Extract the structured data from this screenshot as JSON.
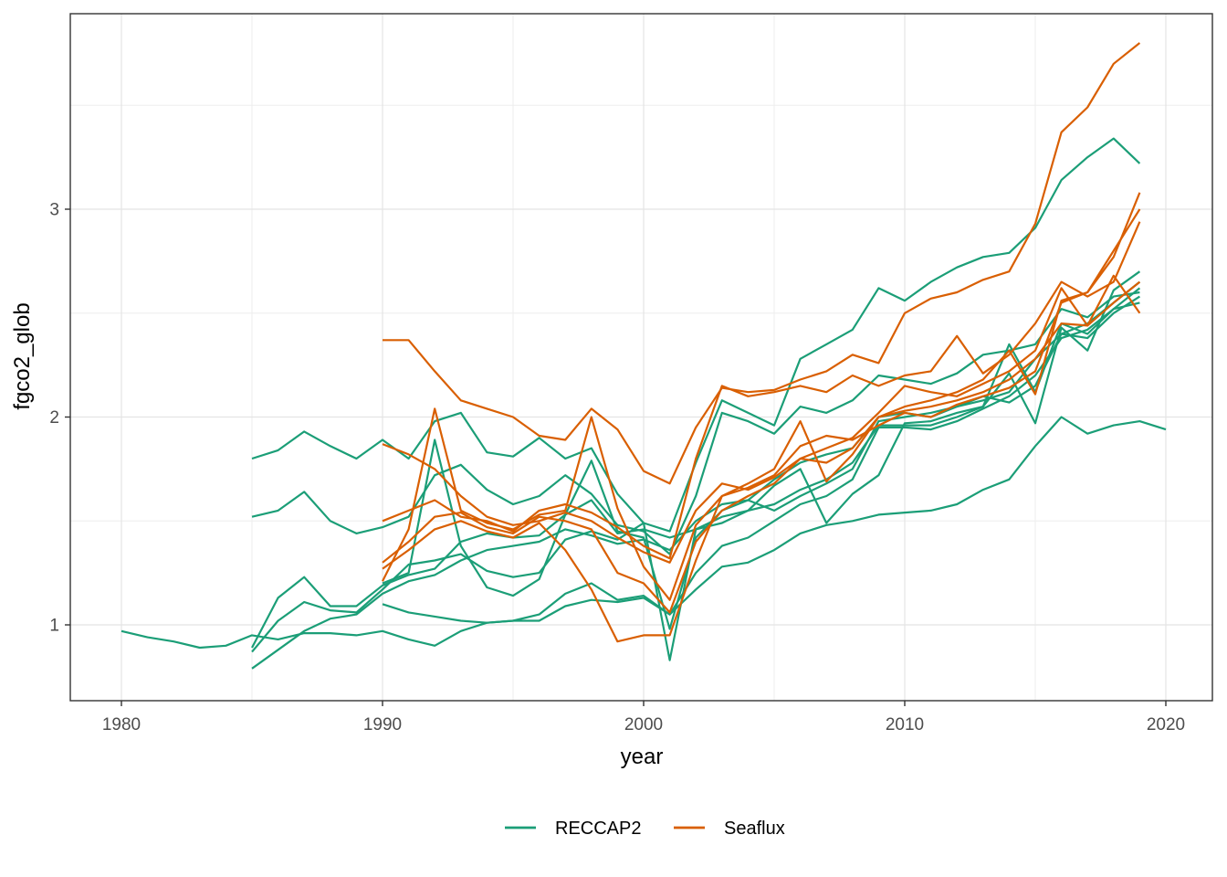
{
  "chart_data": {
    "type": "line",
    "title": "",
    "xlabel": "year",
    "ylabel": "fgco2_glob",
    "x_ticks": [
      {
        "label": "1980",
        "value": 1980
      },
      {
        "label": "1990",
        "value": 1990
      },
      {
        "label": "2000",
        "value": 2000
      },
      {
        "label": "2010",
        "value": 2010
      },
      {
        "label": "2020",
        "value": 2020
      }
    ],
    "x_minor_ticks": [
      1985,
      1995,
      2005,
      2015
    ],
    "y_ticks": [
      {
        "label": "1",
        "value": 1
      },
      {
        "label": "2",
        "value": 2
      },
      {
        "label": "3",
        "value": 3
      }
    ],
    "y_minor_ticks": [
      1.5,
      2.5,
      3.5
    ],
    "xlim": [
      1978.05,
      2021.85
    ],
    "ylim": [
      0.635,
      3.94
    ],
    "grid": true,
    "legend_position": "bottom",
    "panel_background": "#ffffff",
    "grid_major_color": "#e4e4e4",
    "grid_minor_color": "#ededed",
    "panel_border_color": "#333333",
    "tick_label_color": "#4d4d4d",
    "groups": [
      {
        "name": "RECCAP2",
        "color": "#1B9E77"
      },
      {
        "name": "Seaflux",
        "color": "#D95F02"
      }
    ],
    "series": [
      {
        "group": "RECCAP2",
        "start_year": 1980,
        "values": [
          0.97,
          0.94,
          0.92,
          0.89,
          0.9,
          0.95,
          0.93,
          0.96,
          0.96,
          0.95,
          0.97,
          0.93,
          0.9,
          0.97,
          1.01,
          1.02,
          1.02,
          1.09,
          1.12,
          1.11,
          1.13,
          1.05,
          1.17,
          1.28,
          1.3,
          1.36,
          1.44,
          1.48,
          1.5,
          1.53,
          1.54,
          1.55,
          1.58,
          1.65,
          1.7,
          1.86,
          2.0,
          1.92,
          1.96,
          1.98,
          1.94
        ]
      },
      {
        "group": "RECCAP2",
        "start_year": 1985,
        "values": [
          1.8,
          1.84,
          1.93,
          1.86,
          1.8,
          1.89,
          1.8,
          1.98,
          2.02,
          1.83,
          1.81,
          1.9,
          1.8,
          1.85,
          1.63,
          1.49,
          1.45,
          1.78,
          2.08,
          2.02,
          1.96,
          2.28,
          2.35,
          2.42,
          2.62,
          2.56,
          2.65,
          2.72,
          2.77,
          2.79,
          2.91,
          3.14,
          3.25,
          3.34,
          3.22
        ]
      },
      {
        "group": "RECCAP2",
        "start_year": 1985,
        "values": [
          1.52,
          1.55,
          1.64,
          1.5,
          1.44,
          1.47,
          1.52,
          1.72,
          1.77,
          1.65,
          1.58,
          1.62,
          1.72,
          1.63,
          1.48,
          1.45,
          1.34,
          1.62,
          2.02,
          1.98,
          1.92,
          2.05,
          2.02,
          2.08,
          2.2,
          2.18,
          2.16,
          2.21,
          2.3,
          2.32,
          2.35,
          2.52,
          2.48,
          2.58,
          2.6
        ]
      },
      {
        "group": "RECCAP2",
        "start_year": 1985,
        "values": [
          0.89,
          1.13,
          1.23,
          1.09,
          1.09,
          1.19,
          1.24,
          1.27,
          1.4,
          1.44,
          1.42,
          1.43,
          1.53,
          1.6,
          1.44,
          1.46,
          1.42,
          1.46,
          1.49,
          1.55,
          1.67,
          1.75,
          1.49,
          1.63,
          1.72,
          1.97,
          1.98,
          2.02,
          2.05,
          2.21,
          1.97,
          2.43,
          2.32,
          2.61,
          2.7
        ]
      },
      {
        "group": "RECCAP2",
        "start_year": 1985,
        "values": [
          0.87,
          1.02,
          1.11,
          1.07,
          1.06,
          1.17,
          1.29,
          1.31,
          1.34,
          1.26,
          1.23,
          1.25,
          1.41,
          1.45,
          1.41,
          1.49,
          0.83,
          1.46,
          1.52,
          1.55,
          1.58,
          1.65,
          1.7,
          1.78,
          1.96,
          1.96,
          1.96,
          2.0,
          2.05,
          2.35,
          2.12,
          2.45,
          2.4,
          2.52,
          2.62
        ]
      },
      {
        "group": "RECCAP2",
        "start_year": 1985,
        "values": [
          0.79,
          0.88,
          0.97,
          1.03,
          1.05,
          1.15,
          1.21,
          1.24,
          1.31,
          1.36,
          1.38,
          1.4,
          1.46,
          1.43,
          1.39,
          1.41,
          1.36,
          1.5,
          1.58,
          1.6,
          1.55,
          1.62,
          1.68,
          1.75,
          1.98,
          2.0,
          2.02,
          2.05,
          2.08,
          2.12,
          2.28,
          2.4,
          2.38,
          2.5,
          2.58
        ]
      },
      {
        "group": "RECCAP2",
        "start_year": 1990,
        "values": [
          1.2,
          1.25,
          1.89,
          1.38,
          1.18,
          1.14,
          1.22,
          1.53,
          1.79,
          1.45,
          1.42,
          0.98,
          1.42,
          1.55,
          1.6,
          1.7,
          1.78,
          1.82,
          1.85,
          2.0,
          2.02,
          2.0,
          2.05,
          2.1,
          2.07,
          2.15,
          2.4,
          2.45,
          2.55,
          2.65
        ]
      },
      {
        "group": "RECCAP2",
        "start_year": 1990,
        "values": [
          1.1,
          1.06,
          1.04,
          1.02,
          1.01,
          1.02,
          1.05,
          1.15,
          1.2,
          1.12,
          1.14,
          1.05,
          1.25,
          1.38,
          1.42,
          1.5,
          1.58,
          1.62,
          1.7,
          1.95,
          1.95,
          1.94,
          1.98,
          2.04,
          2.1,
          2.2,
          2.38,
          2.42,
          2.52,
          2.55
        ]
      },
      {
        "group": "Seaflux",
        "start_year": 1990,
        "values": [
          2.37,
          2.37,
          2.22,
          2.08,
          2.04,
          2.0,
          1.91,
          1.89,
          2.04,
          1.94,
          1.74,
          1.68,
          1.95,
          2.14,
          2.12,
          2.13,
          2.18,
          2.22,
          2.3,
          2.26,
          2.5,
          2.57,
          2.6,
          2.66,
          2.7,
          2.93,
          3.37,
          3.49,
          3.7,
          3.8
        ]
      },
      {
        "group": "Seaflux",
        "start_year": 1990,
        "values": [
          1.87,
          1.82,
          1.75,
          1.62,
          1.52,
          1.48,
          1.5,
          1.54,
          1.5,
          1.42,
          1.35,
          1.3,
          1.55,
          1.68,
          1.65,
          1.71,
          1.8,
          1.85,
          1.9,
          2.02,
          2.15,
          2.12,
          2.1,
          2.16,
          2.22,
          2.32,
          2.62,
          2.44,
          2.68,
          2.5
        ]
      },
      {
        "group": "Seaflux",
        "start_year": 1990,
        "values": [
          1.21,
          1.46,
          2.04,
          1.55,
          1.49,
          1.46,
          1.53,
          1.55,
          2.0,
          1.56,
          1.28,
          1.12,
          1.48,
          1.62,
          1.68,
          1.75,
          1.98,
          1.69,
          1.82,
          2.0,
          2.05,
          2.08,
          2.12,
          2.18,
          2.32,
          2.11,
          2.56,
          2.6,
          2.77,
          3.08
        ]
      },
      {
        "group": "Seaflux",
        "start_year": 1990,
        "values": [
          1.27,
          1.36,
          1.46,
          1.5,
          1.45,
          1.42,
          1.49,
          1.36,
          1.17,
          0.92,
          0.95,
          0.95,
          1.31,
          1.62,
          1.66,
          1.72,
          1.86,
          1.91,
          1.89,
          1.96,
          2.02,
          2.0,
          2.06,
          2.1,
          2.14,
          2.22,
          2.55,
          2.6,
          2.8,
          3.0
        ]
      },
      {
        "group": "Seaflux",
        "start_year": 1990,
        "values": [
          1.3,
          1.4,
          1.52,
          1.54,
          1.47,
          1.44,
          1.52,
          1.5,
          1.46,
          1.25,
          1.2,
          1.06,
          1.4,
          1.55,
          1.62,
          1.68,
          1.8,
          1.78,
          1.85,
          2.0,
          2.03,
          2.05,
          2.08,
          2.12,
          2.18,
          2.28,
          2.45,
          2.44,
          2.55,
          2.65
        ]
      },
      {
        "group": "Seaflux",
        "start_year": 1990,
        "values": [
          1.5,
          1.55,
          1.6,
          1.52,
          1.5,
          1.45,
          1.55,
          1.58,
          1.54,
          1.47,
          1.38,
          1.32,
          1.8,
          2.15,
          2.1,
          2.12,
          2.15,
          2.12,
          2.2,
          2.15,
          2.2,
          2.22,
          2.39,
          2.21,
          2.3,
          2.45,
          2.65,
          2.58,
          2.65,
          2.94
        ]
      }
    ]
  }
}
